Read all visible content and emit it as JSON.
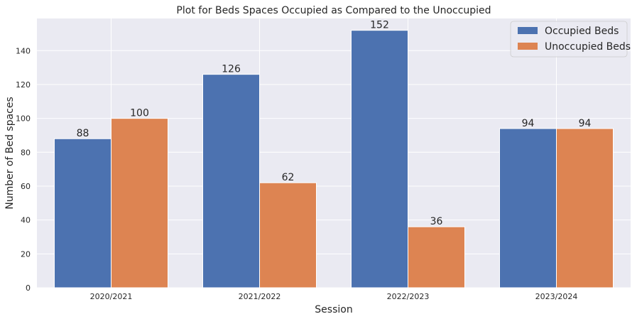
{
  "chart_data": {
    "type": "bar",
    "title": "Plot for Beds Spaces Occupied as Compared to the Unoccupied",
    "xlabel": "Session",
    "ylabel": "Number of Bed spaces",
    "categories": [
      "2020/2021",
      "2021/2022",
      "2022/2023",
      "2023/2024"
    ],
    "series": [
      {
        "name": "Occupied Beds",
        "values": [
          88,
          126,
          152,
          94
        ],
        "color": "#4c72b0"
      },
      {
        "name": "Unoccupied Beds",
        "values": [
          100,
          62,
          36,
          94
        ],
        "color": "#dd8452"
      }
    ],
    "ylim": [
      0,
      159
    ],
    "yticks": [
      0,
      20,
      40,
      60,
      80,
      100,
      120,
      140
    ],
    "grid": true,
    "legend": "top-right",
    "background": "#eaeaf2",
    "grid_color": "#ffffff"
  }
}
